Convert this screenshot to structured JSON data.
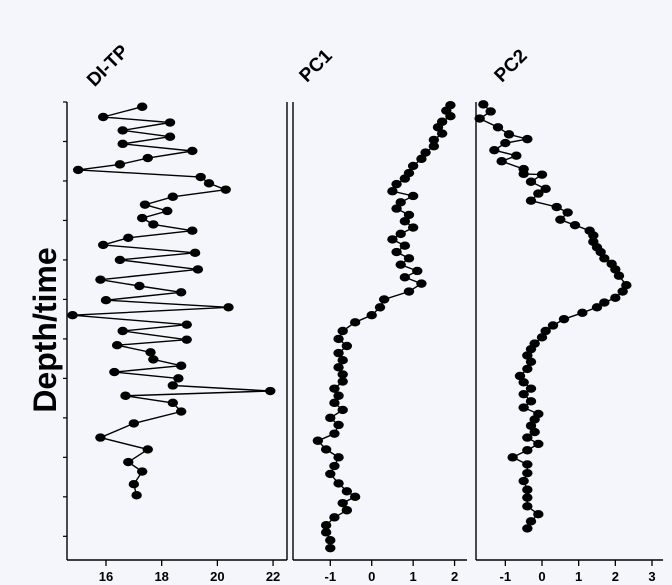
{
  "chart_data": [
    {
      "type": "line",
      "title": "DI-TP",
      "ylabel": "Depth/time",
      "x_ticks": [
        16,
        18,
        20,
        22
      ],
      "xlim": [
        14.6,
        22.5
      ],
      "ylim": [
        0,
        58
      ],
      "y_ticks": [
        0,
        5,
        10,
        15,
        20,
        25,
        30,
        35,
        40,
        45,
        50,
        55
      ],
      "y_direction": "depth increasing downward",
      "marker": "filled circle",
      "series": [
        {
          "x": [
            17.3,
            15.9,
            18.3,
            16.6,
            18.3,
            16.6,
            19.1,
            17.5,
            16.5,
            15.0,
            19.4,
            19.7,
            20.3,
            18.4,
            17.4,
            18.2,
            17.3,
            17.7,
            19.1,
            16.8,
            15.9,
            19.2,
            16.5,
            19.3,
            15.8,
            17.2,
            18.7,
            16.0,
            20.4,
            14.8,
            18.9,
            16.6,
            18.9,
            16.4,
            17.6,
            17.7,
            18.7,
            16.3,
            18.6,
            18.4,
            21.9,
            16.7,
            18.4,
            18.7,
            17.0,
            15.8,
            17.5,
            16.8,
            17.3,
            17.0,
            17.1
          ],
          "y": [
            0.6,
            1.9,
            2.6,
            3.6,
            4.4,
            5.3,
            6.2,
            7.1,
            7.9,
            8.6,
            9.5,
            10.3,
            11.1,
            12.0,
            13.0,
            13.8,
            14.7,
            15.5,
            16.3,
            17.2,
            18.1,
            19.1,
            20.0,
            21.2,
            22.5,
            23.3,
            24.1,
            25.1,
            26.0,
            27.0,
            28.2,
            29.0,
            30.1,
            30.8,
            31.7,
            32.6,
            33.4,
            34.2,
            35.0,
            35.9,
            36.6,
            37.2,
            38.1,
            39.2,
            40.7,
            42.5,
            44.0,
            45.6,
            46.8,
            48.4,
            49.8
          ]
        }
      ]
    },
    {
      "type": "line",
      "title": "PC1",
      "x_ticks": [
        -1,
        0,
        1,
        2
      ],
      "xlim": [
        -1.9,
        2.3
      ],
      "ylim": [
        0,
        58
      ],
      "marker": "filled circle",
      "series": [
        {
          "x": [
            1.9,
            1.8,
            1.9,
            1.7,
            1.6,
            1.7,
            1.5,
            1.5,
            1.3,
            1.2,
            1.0,
            0.9,
            0.8,
            0.6,
            0.5,
            1.0,
            0.7,
            0.6,
            0.9,
            0.8,
            1.0,
            0.7,
            0.5,
            0.8,
            0.6,
            0.9,
            0.7,
            1.1,
            0.8,
            1.2,
            0.9,
            0.3,
            0.2,
            0.0,
            -0.4,
            -0.7,
            -0.8,
            -0.6,
            -0.8,
            -0.7,
            -0.8,
            -0.7,
            -0.7,
            -0.9,
            -0.8,
            -0.9,
            -0.7,
            -1.0,
            -0.8,
            -0.9,
            -1.3,
            -1.1,
            -0.8,
            -0.9,
            -1.0,
            -0.8,
            -0.6,
            -0.4,
            -0.7,
            -0.6,
            -0.9,
            -1.1,
            -1.1,
            -1.0,
            -1.0
          ],
          "y": [
            0.4,
            1.1,
            1.8,
            2.5,
            3.2,
            4.0,
            4.8,
            5.6,
            6.4,
            7.2,
            8.1,
            9.0,
            9.7,
            10.4,
            11.3,
            11.9,
            12.7,
            13.5,
            14.3,
            15.1,
            15.9,
            16.7,
            17.4,
            18.2,
            19.0,
            19.8,
            20.6,
            21.4,
            22.2,
            23.0,
            24.0,
            25.0,
            26.0,
            27.0,
            27.9,
            29.0,
            30.0,
            30.9,
            31.8,
            32.7,
            33.6,
            34.5,
            35.4,
            36.3,
            37.2,
            38.1,
            39.0,
            40.0,
            40.9,
            42.0,
            42.9,
            44.0,
            45.0,
            46.1,
            47.1,
            48.3,
            49.3,
            50.0,
            50.8,
            51.7,
            52.6,
            53.6,
            54.5,
            55.5,
            56.5
          ]
        }
      ]
    },
    {
      "type": "line",
      "title": "PC2",
      "x_ticks": [
        -1,
        0,
        1,
        2,
        3
      ],
      "xlim": [
        -1.8,
        3.3
      ],
      "ylim": [
        0,
        58
      ],
      "marker": "filled circle",
      "series": [
        {
          "x": [
            -1.6,
            -1.4,
            -1.7,
            -1.2,
            -0.9,
            -0.4,
            -1.0,
            -1.3,
            -0.7,
            -1.1,
            -0.5,
            -0.5,
            0.0,
            -0.3,
            0.1,
            -0.1,
            -0.3,
            0.4,
            0.7,
            0.5,
            0.9,
            1.3,
            1.4,
            1.4,
            1.5,
            1.6,
            1.7,
            1.9,
            2.0,
            2.1,
            2.3,
            2.2,
            2.0,
            1.7,
            1.5,
            1.1,
            0.6,
            0.3,
            0.1,
            0.0,
            -0.2,
            -0.3,
            -0.4,
            -0.3,
            -0.4,
            -0.6,
            -0.5,
            -0.3,
            -0.5,
            -0.3,
            -0.5,
            -0.1,
            -0.2,
            -0.3,
            -0.2,
            -0.4,
            -0.1,
            -0.4,
            -0.8,
            -0.4,
            -0.4,
            -0.5,
            -0.4,
            -0.4,
            -0.4,
            -0.1,
            -0.3,
            -0.4
          ],
          "y": [
            0.3,
            1.2,
            2.1,
            3.2,
            4.1,
            4.7,
            5.2,
            6.1,
            6.8,
            7.5,
            8.5,
            9.1,
            9.2,
            10.1,
            11.0,
            11.6,
            12.5,
            13.3,
            14.0,
            14.9,
            15.6,
            16.3,
            16.9,
            17.7,
            18.4,
            19.0,
            19.8,
            20.5,
            21.2,
            22.0,
            23.2,
            24.0,
            24.8,
            25.4,
            26.0,
            26.7,
            27.5,
            28.3,
            29.0,
            29.8,
            30.6,
            31.3,
            32.1,
            32.9,
            33.8,
            34.7,
            35.5,
            36.3,
            37.0,
            37.9,
            38.7,
            39.5,
            40.2,
            41.0,
            41.8,
            42.5,
            43.3,
            44.1,
            45.0,
            45.9,
            47.0,
            48.0,
            49.1,
            50.1,
            51.2,
            52.2,
            53.1,
            54.0
          ]
        }
      ]
    }
  ]
}
